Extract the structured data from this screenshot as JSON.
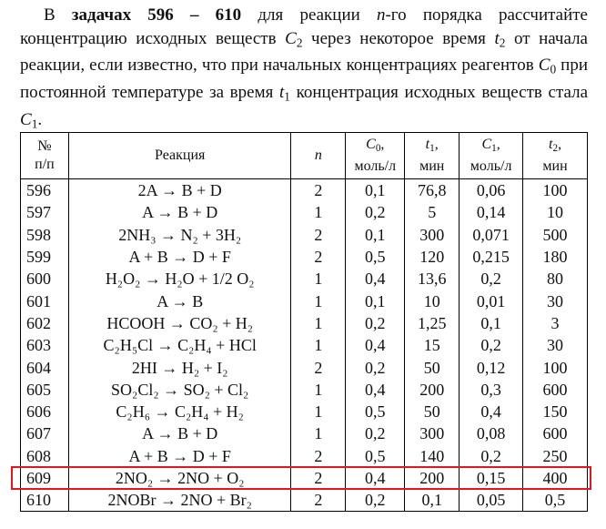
{
  "intro": [
    {
      "text": "В "
    },
    {
      "text": "задачах 596 – 610",
      "style": "bold"
    },
    {
      "text": " для реакции "
    },
    {
      "text": "n",
      "style": "italic"
    },
    {
      "text": "-го порядка рассчитайте концентрацию исходных веществ "
    },
    {
      "text": "C",
      "style": "italic"
    },
    {
      "text": "2",
      "style": "sub"
    },
    {
      "text": " через некоторое время "
    },
    {
      "text": "t",
      "style": "italic"
    },
    {
      "text": "2",
      "style": "sub"
    },
    {
      "text": " от начала реакции, если известно, что при начальных концентрациях реагентов "
    },
    {
      "text": "C",
      "style": "italic"
    },
    {
      "text": "0",
      "style": "sub"
    },
    {
      "text": " при постоянной температуре за время "
    },
    {
      "text": "t",
      "style": "italic"
    },
    {
      "text": "1",
      "style": "sub"
    },
    {
      "text": " концентрация исходных веществ стала "
    },
    {
      "text": "C",
      "style": "italic"
    },
    {
      "text": "1",
      "style": "sub"
    },
    {
      "text": "."
    }
  ],
  "table": {
    "header": [
      [
        [
          {
            "text": "№"
          }
        ],
        [
          {
            "text": "п/п"
          }
        ]
      ],
      [
        [
          {
            "text": "Реакция"
          }
        ]
      ],
      [
        [
          {
            "text": "n",
            "style": "italic"
          }
        ]
      ],
      [
        [
          {
            "text": "C",
            "style": "italic"
          },
          {
            "text": "0",
            "style": "sub"
          },
          {
            "text": ","
          }
        ],
        [
          {
            "text": "моль/л"
          }
        ]
      ],
      [
        [
          {
            "text": "t",
            "style": "italic"
          },
          {
            "text": "1",
            "style": "sub"
          },
          {
            "text": ","
          }
        ],
        [
          {
            "text": "мин"
          }
        ]
      ],
      [
        [
          {
            "text": "C",
            "style": "italic"
          },
          {
            "text": "1",
            "style": "sub"
          },
          {
            "text": ","
          }
        ],
        [
          {
            "text": "моль/л"
          }
        ]
      ],
      [
        [
          {
            "text": "t",
            "style": "italic"
          },
          {
            "text": "2",
            "style": "sub"
          },
          {
            "text": ","
          }
        ],
        [
          {
            "text": "мин"
          }
        ]
      ]
    ],
    "rows": [
      [
        "596",
        "2A → B + D",
        "2",
        "0,1",
        "76,8",
        "0,06",
        "100"
      ],
      [
        "597",
        "A → B + D",
        "1",
        "0,2",
        "5",
        "0,14",
        "10"
      ],
      [
        "598",
        "2NH₃ → N₂ + 3H₂",
        "2",
        "0,1",
        "300",
        "0,071",
        "500"
      ],
      [
        "599",
        "A + B → D + F",
        "2",
        "0,5",
        "120",
        "0,215",
        "180"
      ],
      [
        "600",
        "H₂O₂ → H₂O + 1/2 O₂",
        "1",
        "0,4",
        "13,6",
        "0,2",
        "80"
      ],
      [
        "601",
        "A → B",
        "1",
        "0,1",
        "10",
        "0,01",
        "30"
      ],
      [
        "602",
        "HCOOH → CO₂ + H₂",
        "1",
        "0,2",
        "1,25",
        "0,1",
        "3"
      ],
      [
        "603",
        "C₂H₅Cl → C₂H₄ + HCl",
        "1",
        "0,4",
        "15",
        "0,2",
        "30"
      ],
      [
        "604",
        "2HI → H₂ + I₂",
        "2",
        "0,2",
        "50",
        "0,12",
        "100"
      ],
      [
        "605",
        "SO₂Cl₂ → SO₂ + Cl₂",
        "1",
        "0,4",
        "200",
        "0,3",
        "600"
      ],
      [
        "606",
        "C₂H₆ → C₂H₄ + H₂",
        "1",
        "0,5",
        "50",
        "0,4",
        "150"
      ],
      [
        "607",
        "A → B + D",
        "1",
        "0,2",
        "300",
        "0,08",
        "600"
      ],
      [
        "608",
        "A + B → D + F",
        "2",
        "0,5",
        "140",
        "0,2",
        "250"
      ],
      [
        "609",
        "2NO₂ → 2NO + O₂",
        "2",
        "0,4",
        "200",
        "0,15",
        "400"
      ],
      [
        "610",
        "2NOBr → 2NO + Br₂",
        "2",
        "0,2",
        "0,1",
        "0,05",
        "0,5"
      ]
    ],
    "highlight_row": 13,
    "highlight_color": "#e8141c"
  }
}
